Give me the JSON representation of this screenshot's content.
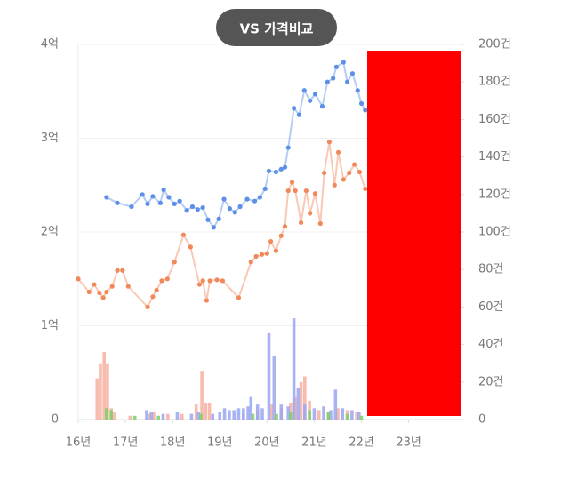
{
  "chart_data": {
    "type": "combo",
    "title": "VS 가격비교",
    "xlim": [
      2016,
      2024.1
    ],
    "xticks": [
      {
        "value": 2016,
        "label": "16년"
      },
      {
        "value": 2017,
        "label": "17년"
      },
      {
        "value": 2018,
        "label": "18년"
      },
      {
        "value": 2019,
        "label": "19년"
      },
      {
        "value": 2020,
        "label": "20년"
      },
      {
        "value": 2021,
        "label": "21년"
      },
      {
        "value": 2022,
        "label": "22년"
      },
      {
        "value": 2023,
        "label": "23년"
      }
    ],
    "ylim": [
      0,
      4
    ],
    "yticks": [
      0,
      {
        "value": 1,
        "label": "1억"
      },
      {
        "value": 2,
        "label": "2억"
      },
      {
        "value": 3,
        "label": "3억"
      },
      {
        "value": 4,
        "label": "4억"
      }
    ],
    "y2lim": [
      0,
      200
    ],
    "y2ticks": [
      0,
      {
        "value": 20,
        "label": "20건"
      },
      {
        "value": 40,
        "label": "40건"
      },
      {
        "value": 60,
        "label": "60건"
      },
      {
        "value": 80,
        "label": "80건"
      },
      {
        "value": 100,
        "label": "100건"
      },
      {
        "value": 120,
        "label": "120건"
      },
      {
        "value": 140,
        "label": "140건"
      },
      {
        "value": 160,
        "label": "160건"
      },
      {
        "value": 180,
        "label": "180건"
      },
      {
        "value": 200,
        "label": "200건"
      }
    ],
    "grid": true,
    "series": [
      {
        "kind": "bar",
        "axis": "y2",
        "color": "#f7b0a0",
        "x": [
          2016.4,
          2016.47,
          2016.55,
          2016.62,
          2016.7,
          2016.77,
          2017.1,
          2017.5,
          2017.6,
          2017.9,
          2018.2,
          2018.5,
          2018.62,
          2018.7,
          2018.78,
          2019.5,
          2019.8,
          2020.1,
          2020.3,
          2020.5,
          2020.6,
          2020.72,
          2020.8,
          2020.9,
          2021.1,
          2021.3,
          2021.5,
          2021.7,
          2021.9
        ],
        "values": [
          22,
          30,
          36,
          30,
          6,
          4,
          2,
          3,
          4,
          3,
          3,
          8,
          26,
          9,
          9,
          3,
          5,
          8,
          6,
          9,
          12,
          20,
          23,
          10,
          5,
          4,
          6,
          5,
          4
        ]
      },
      {
        "kind": "bar",
        "axis": "y2",
        "color": "#9aa6f2",
        "x": [
          2017.45,
          2017.55,
          2017.8,
          2018.1,
          2018.4,
          2018.55,
          2018.85,
          2019.0,
          2019.1,
          2019.2,
          2019.3,
          2019.4,
          2019.5,
          2019.6,
          2019.66,
          2019.8,
          2019.9,
          2020.04,
          2020.15,
          2020.3,
          2020.45,
          2020.57,
          2020.66,
          2020.8,
          2021.0,
          2021.2,
          2021.35,
          2021.45,
          2021.6,
          2021.8,
          2021.95
        ],
        "values": [
          5,
          4,
          3,
          4,
          3,
          4,
          3,
          4,
          6,
          5,
          5,
          6,
          6,
          7,
          12,
          8,
          6,
          46,
          34,
          8,
          7,
          54,
          17,
          8,
          6,
          7,
          5,
          16,
          6,
          5,
          4
        ]
      },
      {
        "kind": "bar",
        "axis": "y2",
        "color": "#7ccf6a",
        "x": [
          2016.6,
          2016.7,
          2017.2,
          2017.7,
          2018.6,
          2019.7,
          2020.2,
          2020.5,
          2020.9,
          2021.3,
          2021.7,
          2022.0
        ],
        "values": [
          6,
          5,
          2,
          2,
          3,
          3,
          3,
          4,
          5,
          4,
          3,
          2
        ]
      },
      {
        "kind": "line",
        "color": "#5b8fe8",
        "x": [
          2016.6,
          2016.83,
          2017.13,
          2017.36,
          2017.47,
          2017.58,
          2017.74,
          2017.81,
          2017.92,
          2018.04,
          2018.15,
          2018.3,
          2018.42,
          2018.53,
          2018.64,
          2018.75,
          2018.87,
          2018.98,
          2019.09,
          2019.21,
          2019.32,
          2019.43,
          2019.58,
          2019.74,
          2019.85,
          2019.96,
          2020.04,
          2020.19,
          2020.3,
          2020.38,
          2020.45,
          2020.57,
          2020.68,
          2020.79,
          2020.91,
          2021.02,
          2021.17,
          2021.28,
          2021.4,
          2021.47,
          2021.62,
          2021.7,
          2021.81,
          2021.92,
          2022.0,
          2022.08
        ],
        "values": [
          2.37,
          2.31,
          2.27,
          2.4,
          2.3,
          2.38,
          2.31,
          2.45,
          2.37,
          2.3,
          2.33,
          2.23,
          2.27,
          2.24,
          2.26,
          2.13,
          2.05,
          2.14,
          2.35,
          2.25,
          2.21,
          2.27,
          2.35,
          2.33,
          2.37,
          2.46,
          2.65,
          2.64,
          2.67,
          2.69,
          2.9,
          3.32,
          3.25,
          3.51,
          3.4,
          3.47,
          3.34,
          3.6,
          3.64,
          3.76,
          3.81,
          3.6,
          3.69,
          3.51,
          3.37,
          3.3
        ]
      },
      {
        "kind": "line",
        "color": "#f0885a",
        "x": [
          2016.0,
          2016.23,
          2016.34,
          2016.45,
          2016.53,
          2016.6,
          2016.72,
          2016.83,
          2016.94,
          2017.06,
          2017.47,
          2017.58,
          2017.66,
          2017.77,
          2017.89,
          2018.04,
          2018.23,
          2018.38,
          2018.57,
          2018.64,
          2018.72,
          2018.79,
          2018.94,
          2019.06,
          2019.4,
          2019.66,
          2019.77,
          2019.89,
          2020.0,
          2020.08,
          2020.19,
          2020.3,
          2020.38,
          2020.45,
          2020.53,
          2020.6,
          2020.72,
          2020.83,
          2020.91,
          2021.02,
          2021.13,
          2021.21,
          2021.32,
          2021.43,
          2021.51,
          2021.62,
          2021.74,
          2021.85,
          2021.96,
          2022.08
        ],
        "values": [
          1.5,
          1.36,
          1.44,
          1.35,
          1.3,
          1.36,
          1.42,
          1.59,
          1.59,
          1.42,
          1.2,
          1.31,
          1.38,
          1.48,
          1.5,
          1.68,
          1.97,
          1.84,
          1.44,
          1.48,
          1.27,
          1.48,
          1.49,
          1.48,
          1.3,
          1.68,
          1.74,
          1.76,
          1.77,
          1.9,
          1.8,
          1.96,
          2.06,
          2.44,
          2.53,
          2.44,
          2.1,
          2.44,
          2.2,
          2.41,
          2.09,
          2.63,
          2.96,
          2.5,
          2.85,
          2.56,
          2.63,
          2.72,
          2.64,
          2.46
        ]
      }
    ]
  }
}
